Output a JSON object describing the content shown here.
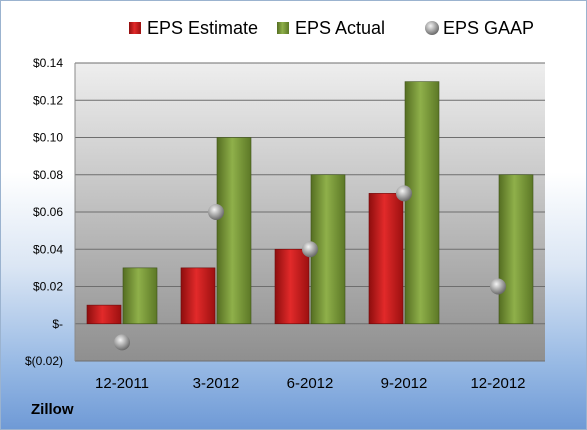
{
  "company": "Zillow",
  "chart_data": {
    "type": "bar",
    "title": "",
    "xlabel": "",
    "ylabel": "",
    "categories": [
      "12-2011",
      "3-2012",
      "6-2012",
      "9-2012",
      "12-2012"
    ],
    "ylim": [
      -0.02,
      0.14
    ],
    "ytick_values": [
      -0.02,
      0,
      0.02,
      0.04,
      0.06,
      0.08,
      0.1,
      0.12,
      0.14
    ],
    "ytick_labels": [
      "$(0.02)",
      "$-",
      "$0.02",
      "$0.04",
      "$0.06",
      "$0.08",
      "$0.10",
      "$0.12",
      "$0.14"
    ],
    "grid": true,
    "legend_position": "top",
    "series": [
      {
        "name": "EPS Estimate",
        "kind": "bar",
        "color": "#cc1f1f",
        "values": [
          0.01,
          0.03,
          0.04,
          0.07,
          null
        ]
      },
      {
        "name": "EPS Actual",
        "kind": "bar",
        "color": "#7e9e3a",
        "values": [
          0.03,
          0.1,
          0.08,
          0.13,
          0.08
        ]
      },
      {
        "name": "EPS GAAP",
        "kind": "marker",
        "color": "#9a9a9a",
        "values": [
          -0.01,
          0.06,
          0.04,
          0.07,
          0.02
        ]
      }
    ]
  }
}
